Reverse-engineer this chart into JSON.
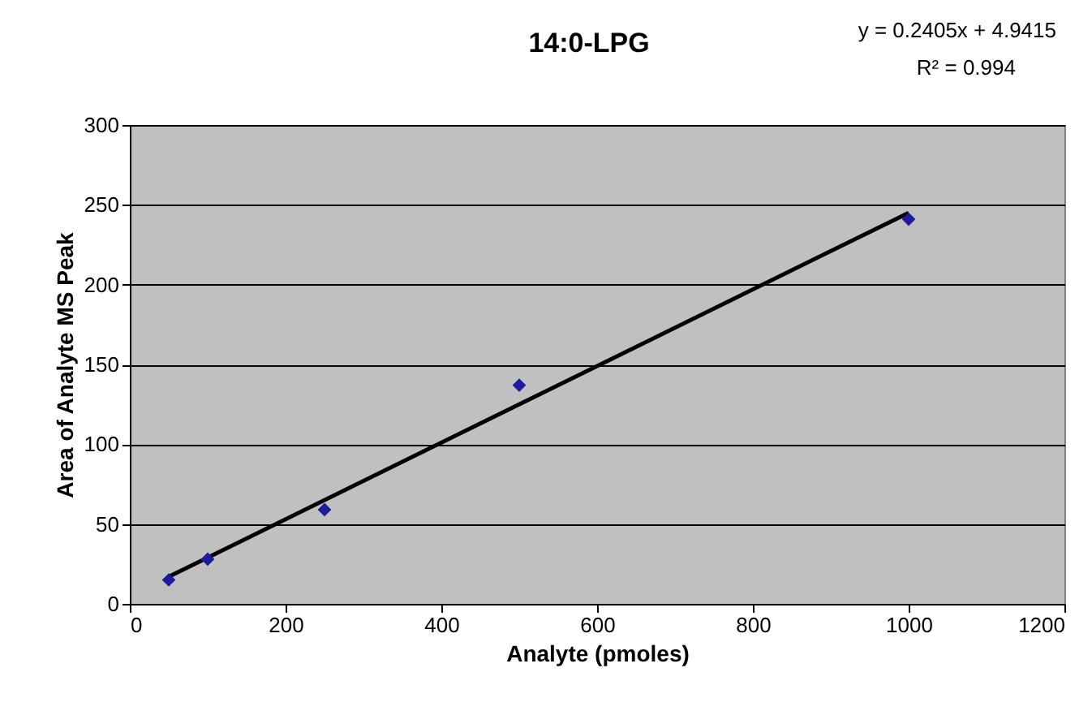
{
  "chart_data": {
    "type": "scatter",
    "title": "14:0-LPG",
    "xlabel": "Analyte (pmoles)",
    "ylabel": "Area of Analyte MS Peak",
    "annotations": [
      "y = 0.2405x + 4.9415",
      "R² = 0.994"
    ],
    "series": [
      {
        "type": "scatter",
        "color": "#1c1c9c",
        "marker": "diamond",
        "x": [
          50,
          100,
          250,
          500,
          1000
        ],
        "values": [
          15,
          28,
          59,
          137,
          241
        ]
      },
      {
        "type": "line",
        "color": "#000000",
        "line_style": "solid",
        "x": [
          50,
          1000
        ],
        "values": [
          17,
          245
        ]
      }
    ],
    "xlim": [
      0,
      1200
    ],
    "xticks": [
      0,
      200,
      400,
      600,
      800,
      {
        "value": 1000,
        "label": "1000"
      },
      {
        "value": 1200,
        "label": "1200"
      }
    ],
    "ylim": [
      0,
      300
    ],
    "yticks": [
      0,
      50,
      100,
      150,
      200,
      250,
      300
    ],
    "grid": "y",
    "legend": false
  }
}
